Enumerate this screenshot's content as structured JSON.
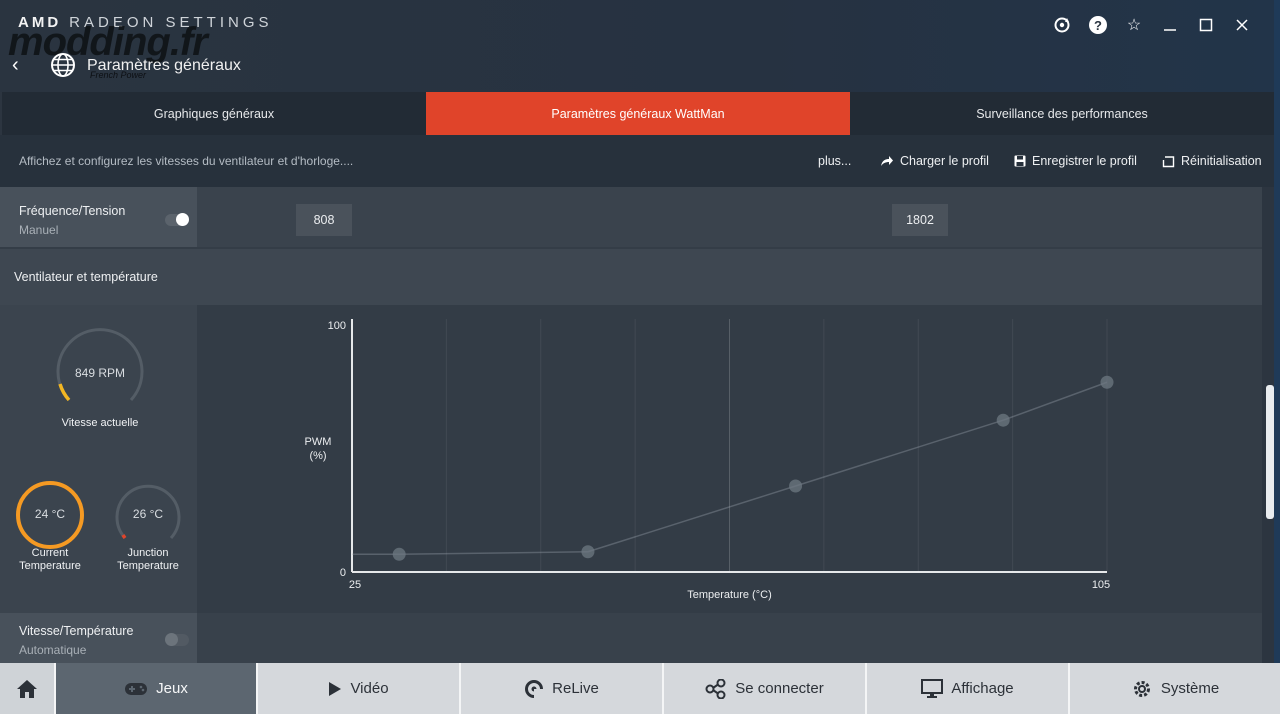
{
  "app": {
    "brand": "AMD",
    "brand_sub": "RADEON SETTINGS",
    "watermark": "modding.fr",
    "watermark_sub": "French Power",
    "page_title": "Paramètres généraux"
  },
  "tabs": [
    {
      "label": "Graphiques généraux",
      "active": false
    },
    {
      "label": "Paramètres généraux WattMan",
      "active": true
    },
    {
      "label": "Surveillance des performances",
      "active": false
    }
  ],
  "subheader": {
    "description": "Affichez et configurez les vitesses du ventilateur et d'horloge....",
    "more": "plus...",
    "load_profile": "Charger le profil",
    "save_profile": "Enregistrer le profil",
    "reset": "Réinitialisation"
  },
  "freq_section": {
    "title": "Fréquence/Tension",
    "mode": "Manuel",
    "toggle_on": true,
    "value_low": "808",
    "value_high": "1802"
  },
  "fan_section": {
    "title": "Ventilateur et température",
    "fan_speed": "849 RPM",
    "fan_speed_caption": "Vitesse actuelle",
    "current_temp": "24 °C",
    "current_temp_caption_1": "Current",
    "current_temp_caption_2": "Temperature",
    "junction_temp": "26 °C",
    "junction_temp_caption_1": "Junction",
    "junction_temp_caption_2": "Temperature"
  },
  "chart_data": {
    "type": "line",
    "xlabel": "Temperature (°C)",
    "ylabel_1": "PWM",
    "ylabel_2": "(%)",
    "xlim": [
      25,
      105
    ],
    "ylim": [
      0,
      100
    ],
    "x_tick_min": "25",
    "x_tick_max": "105",
    "y_tick_min": "0",
    "y_tick_max": "100",
    "points": [
      {
        "x": 30,
        "y": 7
      },
      {
        "x": 50,
        "y": 8
      },
      {
        "x": 72,
        "y": 34
      },
      {
        "x": 94,
        "y": 60
      },
      {
        "x": 105,
        "y": 75
      }
    ],
    "grid": true
  },
  "vit_section": {
    "title": "Vitesse/Température",
    "mode": "Automatique",
    "toggle_on": false
  },
  "bottom_nav": [
    {
      "label": "Jeux",
      "icon": "gamepad-icon",
      "active": true
    },
    {
      "label": "Vidéo",
      "icon": "play-icon",
      "active": false
    },
    {
      "label": "ReLive",
      "icon": "relive-icon",
      "active": false
    },
    {
      "label": "Se connecter",
      "icon": "connect-icon",
      "active": false
    },
    {
      "label": "Affichage",
      "icon": "monitor-icon",
      "active": false
    },
    {
      "label": "Système",
      "icon": "gear-icon",
      "active": false
    }
  ],
  "colors": {
    "accent": "#e0442a",
    "gauge_yellow": "#f2b623",
    "gauge_orange": "#f59a23",
    "gauge_red": "#e0442a"
  }
}
